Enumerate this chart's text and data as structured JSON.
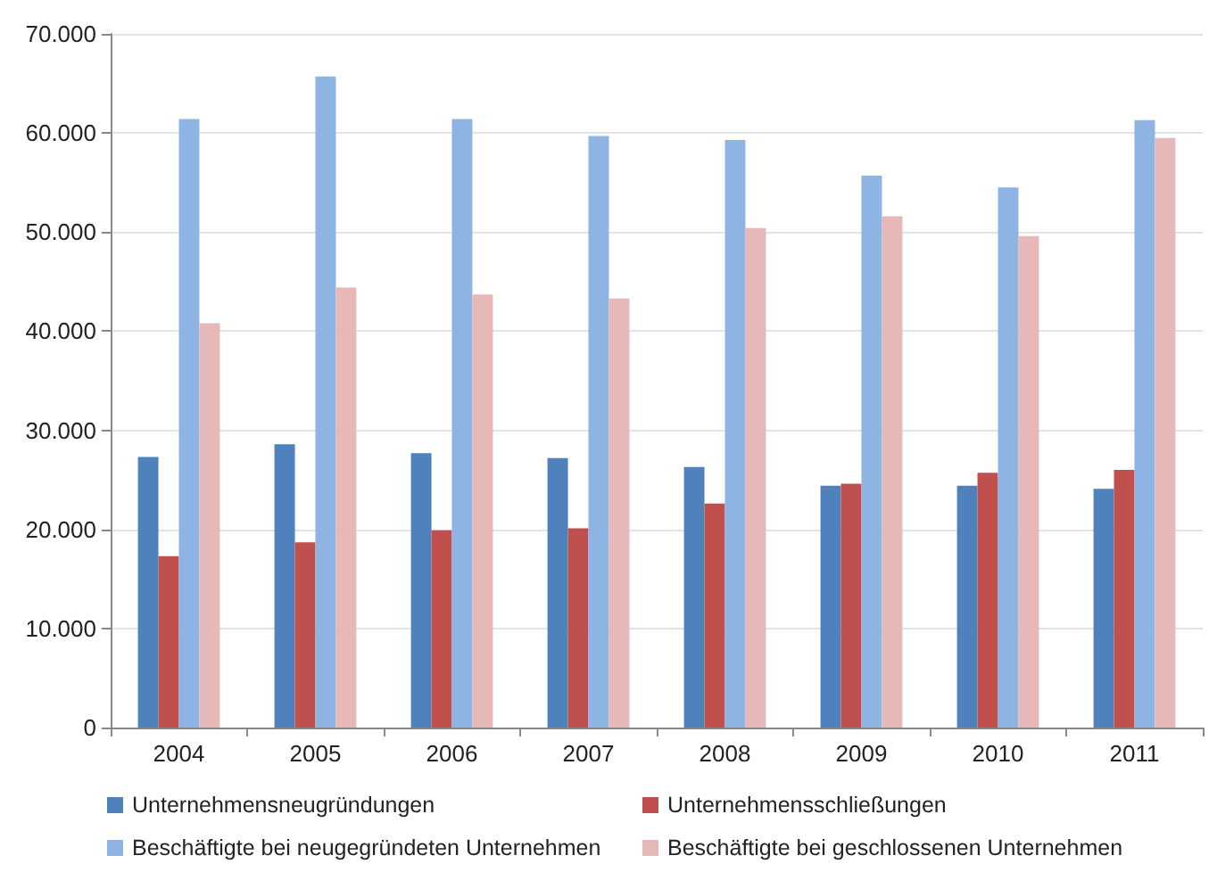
{
  "chart_data": {
    "type": "bar",
    "categories": [
      "2004",
      "2005",
      "2006",
      "2007",
      "2008",
      "2009",
      "2010",
      "2011"
    ],
    "series": [
      {
        "name": "Unternehmensneugründungen",
        "color": "#4f81bd",
        "values": [
          27300,
          28600,
          27700,
          27200,
          26300,
          24400,
          24400,
          24100
        ]
      },
      {
        "name": "Unternehmensschließungen",
        "color": "#c0504d",
        "values": [
          17300,
          18700,
          19900,
          20100,
          22600,
          24600,
          25700,
          26000
        ]
      },
      {
        "name": "Beschäftigte bei neugegründeten Unternehmen",
        "color": "#8eb4e3",
        "values": [
          61400,
          65700,
          61400,
          59700,
          59300,
          55700,
          54500,
          61300
        ]
      },
      {
        "name": "Beschäftigte bei geschlossenen Unternehmen",
        "color": "#e6b9b8",
        "values": [
          40800,
          44400,
          43700,
          43300,
          50400,
          51600,
          49600,
          59500
        ]
      }
    ],
    "ylim": [
      0,
      70000
    ],
    "yticks": [
      0,
      {
        "value": 10000,
        "label": "10.000"
      },
      {
        "value": 20000,
        "label": "20.000"
      },
      {
        "value": 30000,
        "label": "30.000"
      },
      {
        "value": 40000,
        "label": "40.000"
      },
      {
        "value": 50000,
        "label": "50.000"
      },
      {
        "value": 60000,
        "label": "60.000"
      },
      {
        "value": 70000,
        "label": "70.000"
      }
    ],
    "grid": "y",
    "legend": "bottom"
  }
}
